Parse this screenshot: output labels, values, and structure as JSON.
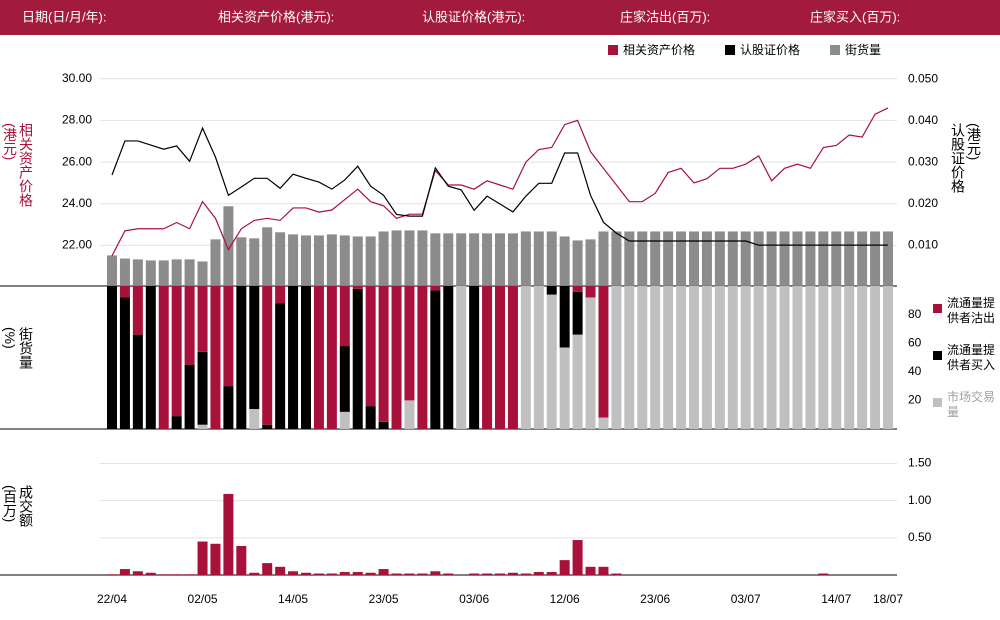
{
  "header": {
    "fields": [
      "日期(日/月/年):",
      "相关资产价格(港元):",
      "认股证价格(港元):",
      "庄家沽出(百万):",
      "庄家买入(百万):"
    ]
  },
  "chart_data": [
    {
      "type": "line",
      "ylabel": "相关资产价格(港元)",
      "y2label": "认股证价格(港元)",
      "ylim": [
        20.1,
        30.9
      ],
      "yticks": [
        {
          "value": 22,
          "label": "22.00"
        },
        {
          "value": 24,
          "label": "24.00"
        },
        {
          "value": 26,
          "label": "26.00"
        },
        {
          "value": 28,
          "label": "28.00"
        },
        {
          "value": 30,
          "label": "30.00"
        }
      ],
      "y2lim": [
        0.0004,
        0.0546
      ],
      "y2ticks": [
        {
          "value": 0.01,
          "label": "0.010"
        },
        {
          "value": 0.02,
          "label": "0.020"
        },
        {
          "value": 0.03,
          "label": "0.030"
        },
        {
          "value": 0.04,
          "label": "0.040"
        },
        {
          "value": 0.05,
          "label": "0.050"
        }
      ],
      "grid": true,
      "legend": "top-right",
      "series": [
        {
          "name": "相关资产价格",
          "color": "#a8123a",
          "axis": "y",
          "values": [
            21.5,
            22.7,
            22.8,
            22.8,
            22.8,
            23.1,
            22.8,
            24.1,
            23.3,
            21.8,
            22.8,
            23.2,
            23.3,
            23.2,
            23.8,
            23.8,
            23.6,
            23.7,
            24.2,
            24.7,
            24.1,
            23.9,
            23.3,
            23.5,
            23.5,
            25.6,
            24.9,
            24.9,
            24.7,
            25.1,
            24.9,
            24.7,
            26.0,
            26.6,
            26.7,
            27.8,
            28.0,
            26.5,
            25.7,
            24.9,
            24.1,
            24.1,
            24.5,
            25.5,
            25.7,
            25.0,
            25.2,
            25.7,
            25.7,
            25.9,
            26.3,
            25.1,
            25.7,
            25.9,
            25.7,
            26.7,
            26.8,
            27.3,
            27.2,
            28.3,
            28.6
          ]
        },
        {
          "name": "认股证价格",
          "color": "#000000",
          "axis": "y2",
          "values": [
            0.0269,
            0.0351,
            0.0351,
            0.0341,
            0.0331,
            0.0339,
            0.0302,
            0.0382,
            0.0312,
            0.022,
            0.024,
            0.0261,
            0.0261,
            0.0237,
            0.0271,
            0.0261,
            0.0252,
            0.0235,
            0.0257,
            0.029,
            0.0242,
            0.022,
            0.0174,
            0.017,
            0.017,
            0.0286,
            0.0242,
            0.0233,
            0.0184,
            0.0218,
            0.0199,
            0.018,
            0.0218,
            0.0249,
            0.0249,
            0.0322,
            0.0322,
            0.022,
            0.0155,
            0.0129,
            0.011,
            0.011,
            0.011,
            0.011,
            0.011,
            0.011,
            0.011,
            0.011,
            0.011,
            0.011,
            0.01,
            0.01,
            0.01,
            0.01,
            0.01,
            0.01,
            0.01,
            0.01,
            0.01,
            0.01,
            0.01
          ]
        },
        {
          "name": "街货量",
          "color": "#8c8c8c",
          "axis": "y",
          "type": "bar",
          "values": [
            21.52,
            21.37,
            21.33,
            21.28,
            21.28,
            21.33,
            21.33,
            21.23,
            22.29,
            23.88,
            22.39,
            22.34,
            22.87,
            22.63,
            22.53,
            22.48,
            22.48,
            22.53,
            22.48,
            22.43,
            22.43,
            22.67,
            22.72,
            22.72,
            22.72,
            22.58,
            22.58,
            22.58,
            22.58,
            22.58,
            22.58,
            22.58,
            22.67,
            22.67,
            22.67,
            22.43,
            22.24,
            22.29,
            22.67,
            22.67,
            22.67,
            22.67,
            22.67,
            22.67,
            22.67,
            22.67,
            22.67,
            22.67,
            22.67,
            22.67,
            22.67,
            22.67,
            22.67,
            22.67,
            22.67,
            22.67,
            22.67,
            22.67,
            22.67,
            22.67,
            22.67
          ]
        }
      ]
    },
    {
      "type": "bar",
      "stacked": true,
      "ylabel": "街货量(%)",
      "y_axis_position": "right",
      "legend": "right",
      "ylim": [
        0,
        100
      ],
      "yticks": [
        20,
        40,
        60,
        80
      ],
      "series": [
        {
          "name": "流通量提供者沽出",
          "color": "#a8123a",
          "values": [
            0,
            8,
            34,
            0,
            100,
            91,
            55,
            46,
            100,
            70,
            0,
            0,
            97,
            12,
            0,
            0,
            100,
            100,
            42,
            2,
            84,
            95,
            100,
            80,
            100,
            3,
            0,
            0,
            0,
            100,
            100,
            100,
            0,
            0,
            0,
            0,
            4,
            8,
            92,
            0,
            0,
            0,
            0,
            0,
            0,
            0,
            0,
            0,
            0,
            0,
            0,
            0,
            0,
            0,
            0,
            0,
            0,
            0,
            0,
            0,
            0
          ]
        },
        {
          "name": "流通量提供者买入",
          "color": "#000000",
          "values": [
            100,
            92,
            66,
            100,
            0,
            9,
            45,
            51,
            0,
            30,
            100,
            86,
            3,
            88,
            100,
            100,
            0,
            0,
            46,
            98,
            16,
            5,
            0,
            0,
            0,
            97,
            100,
            0,
            100,
            0,
            0,
            0,
            0,
            0,
            6,
            43,
            30,
            0,
            0,
            0,
            0,
            0,
            0,
            0,
            0,
            0,
            0,
            0,
            0,
            0,
            0,
            0,
            0,
            0,
            0,
            0,
            0,
            0,
            0,
            0,
            0
          ]
        },
        {
          "name": "市场交易量",
          "color": "#c0c0c0",
          "values": [
            0,
            0,
            0,
            0,
            0,
            0,
            0,
            3,
            0,
            0,
            0,
            14,
            0,
            0,
            0,
            0,
            0,
            0,
            12,
            0,
            0,
            0,
            0,
            20,
            0,
            0,
            0,
            100,
            0,
            0,
            0,
            0,
            100,
            100,
            94,
            57,
            66,
            92,
            8,
            100,
            100,
            100,
            100,
            100,
            100,
            100,
            100,
            100,
            100,
            100,
            100,
            100,
            100,
            100,
            100,
            100,
            100,
            100,
            100,
            100,
            100
          ]
        }
      ]
    },
    {
      "type": "bar",
      "ylabel": "成交额(百万)",
      "y_axis_position": "right",
      "grid": true,
      "color": "#a8123a",
      "ylim": [
        0,
        1.6
      ],
      "yticks": [
        {
          "value": 0.5,
          "label": "0.50"
        },
        {
          "value": 1,
          "label": "1.00"
        },
        {
          "value": 1.5,
          "label": "1.50"
        }
      ],
      "categories": [
        "22/04",
        null,
        null,
        null,
        null,
        null,
        null,
        "02/05",
        null,
        null,
        null,
        null,
        null,
        null,
        "14/05",
        null,
        null,
        null,
        null,
        null,
        null,
        "23/05",
        null,
        null,
        null,
        null,
        null,
        null,
        "03/06",
        null,
        null,
        null,
        null,
        null,
        null,
        "12/06",
        null,
        null,
        null,
        null,
        null,
        null,
        "23/06",
        null,
        null,
        null,
        null,
        null,
        null,
        "03/07",
        null,
        null,
        null,
        null,
        null,
        null,
        "14/07",
        null,
        null,
        null,
        "18/07"
      ],
      "values": [
        0.01,
        0.08,
        0.05,
        0.03,
        0.01,
        0.01,
        0.01,
        0.45,
        0.42,
        1.09,
        0.39,
        0.03,
        0.16,
        0.11,
        0.05,
        0.03,
        0.02,
        0.02,
        0.04,
        0.04,
        0.03,
        0.08,
        0.02,
        0.02,
        0.02,
        0.05,
        0.02,
        0,
        0.02,
        0.02,
        0.02,
        0.03,
        0.02,
        0.04,
        0.04,
        0.2,
        0.47,
        0.11,
        0.11,
        0.02,
        0,
        0,
        0,
        0,
        0,
        0,
        0,
        0,
        0,
        0,
        0,
        0,
        0,
        0,
        0,
        0.02,
        0,
        0,
        0,
        0,
        0
      ]
    }
  ]
}
